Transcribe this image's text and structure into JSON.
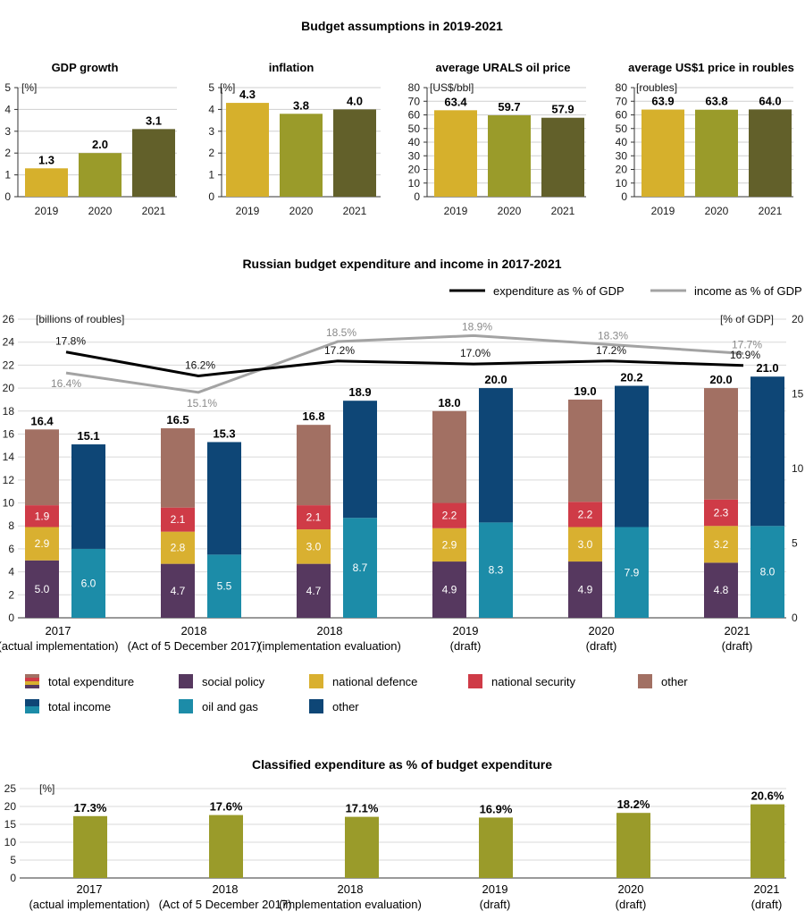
{
  "header": {
    "title": "Budget assumptions in 2019-2021"
  },
  "colors": {
    "c2019": "#d6b02c",
    "c2020": "#9a9b2a",
    "c2021": "#62602a",
    "social": "#56385f",
    "defence": "#d9b030",
    "security": "#cf3b47",
    "other_exp": "#a27063",
    "oilgas": "#1c8ca8",
    "other_inc": "#0e4676",
    "exp_line": "#000000",
    "inc_line": "#a3a3a3",
    "classified": "#9a9b2a"
  },
  "chart_data": [
    {
      "id": "gdp",
      "type": "bar",
      "title": "GDP growth",
      "unit": "[%]",
      "categories": [
        "2019",
        "2020",
        "2021"
      ],
      "values": [
        1.3,
        2.0,
        3.1
      ],
      "labels": [
        "1.3",
        "2.0",
        "3.1"
      ],
      "ylim": [
        0,
        5
      ],
      "ticks": [
        "0",
        "1",
        "2",
        "3",
        "4",
        "5"
      ]
    },
    {
      "id": "inflation",
      "type": "bar",
      "title": "inflation",
      "unit": "[%]",
      "categories": [
        "2019",
        "2020",
        "2021"
      ],
      "values": [
        4.3,
        3.8,
        4.0
      ],
      "labels": [
        "4.3",
        "3.8",
        "4.0"
      ],
      "ylim": [
        0,
        5
      ],
      "ticks": [
        "0",
        "1",
        "2",
        "3",
        "4",
        "5"
      ]
    },
    {
      "id": "urals",
      "type": "bar",
      "title": "average URALS oil price",
      "unit": "[US$/bbl]",
      "categories": [
        "2019",
        "2020",
        "2021"
      ],
      "values": [
        63.4,
        59.7,
        57.9
      ],
      "labels": [
        "63.4",
        "59.7",
        "57.9"
      ],
      "ylim": [
        0,
        80
      ],
      "ticks": [
        "0",
        "10",
        "20",
        "30",
        "40",
        "50",
        "60",
        "70",
        "80"
      ]
    },
    {
      "id": "usd",
      "type": "bar",
      "title": "average US$1 price in roubles",
      "unit": "[roubles]",
      "categories": [
        "2019",
        "2020",
        "2021"
      ],
      "values": [
        63.9,
        63.8,
        64.0
      ],
      "labels": [
        "63.9",
        "63.8",
        "64.0"
      ],
      "ylim": [
        0,
        80
      ],
      "ticks": [
        "0",
        "10",
        "20",
        "30",
        "40",
        "50",
        "60",
        "70",
        "80"
      ]
    },
    {
      "id": "budget",
      "type": "bar",
      "title": "Russian budget expenditure and income in 2017-2021",
      "unit_left": "[billions of roubles]",
      "unit_right": "[% of GDP]",
      "ylim": [
        0,
        26
      ],
      "ylim_right": [
        0,
        20
      ],
      "ticks_left": [
        "0",
        "2",
        "4",
        "6",
        "8",
        "10",
        "12",
        "14",
        "16",
        "18",
        "20",
        "22",
        "24",
        "26"
      ],
      "ticks_right": [
        "0",
        "5",
        "10",
        "15",
        "20"
      ],
      "categories": [
        {
          "year": "2017",
          "note": "(actual implementation)"
        },
        {
          "year": "2018",
          "note": "(Act of 5 December 2017)"
        },
        {
          "year": "2018",
          "note": "(implementation evaluation)"
        },
        {
          "year": "2019",
          "note": "(draft)"
        },
        {
          "year": "2020",
          "note": "(draft)"
        },
        {
          "year": "2021",
          "note": "(draft)"
        }
      ],
      "expenditure": {
        "totals": [
          16.4,
          16.5,
          16.8,
          18.0,
          19.0,
          20.0
        ],
        "total_labels": [
          "16.4",
          "16.5",
          "16.8",
          "18.0",
          "19.0",
          "20.0"
        ],
        "series": [
          {
            "name": "social policy",
            "values": [
              5.0,
              4.7,
              4.7,
              4.9,
              4.9,
              4.8
            ],
            "labels": [
              "5.0",
              "4.7",
              "4.7",
              "4.9",
              "4.9",
              "4.8"
            ]
          },
          {
            "name": "national defence",
            "values": [
              2.9,
              2.8,
              3.0,
              2.9,
              3.0,
              3.2
            ],
            "labels": [
              "2.9",
              "2.8",
              "3.0",
              "2.9",
              "3.0",
              "3.2"
            ]
          },
          {
            "name": "national security",
            "values": [
              1.9,
              2.1,
              2.1,
              2.2,
              2.2,
              2.3
            ],
            "labels": [
              "1.9",
              "2.1",
              "2.1",
              "2.2",
              "2.2",
              "2.3"
            ]
          }
        ]
      },
      "income": {
        "totals": [
          15.1,
          15.3,
          18.9,
          20.0,
          20.2,
          21.0
        ],
        "total_labels": [
          "15.1",
          "15.3",
          "18.9",
          "20.0",
          "20.2",
          "21.0"
        ],
        "series": [
          {
            "name": "oil and gas",
            "values": [
              6.0,
              5.5,
              8.7,
              8.3,
              7.9,
              8.0
            ],
            "labels": [
              "6.0",
              "5.5",
              "8.7",
              "8.3",
              "7.9",
              "8.0"
            ]
          }
        ]
      },
      "lines": [
        {
          "name": "expenditure as % of GDP",
          "values": [
            17.8,
            16.2,
            17.2,
            17.0,
            17.2,
            16.9
          ],
          "labels": [
            "17.8%",
            "16.2%",
            "17.2%",
            "17.0%",
            "17.2%",
            "16.9%"
          ]
        },
        {
          "name": "income as % of GDP",
          "values": [
            16.4,
            15.1,
            18.5,
            18.9,
            18.3,
            17.7
          ],
          "labels": [
            "16.4%",
            "15.1%",
            "18.5%",
            "18.9%",
            "18.3%",
            "17.7%"
          ]
        }
      ],
      "legend": [
        {
          "key": "total-expenditure",
          "label": "total expenditure"
        },
        {
          "key": "social-policy",
          "label": "social policy"
        },
        {
          "key": "national-defence",
          "label": "national defence"
        },
        {
          "key": "national-security",
          "label": "national security"
        },
        {
          "key": "other-expenditure",
          "label": "other"
        },
        {
          "key": "total-income",
          "label": "total income"
        },
        {
          "key": "oil-and-gas",
          "label": "oil and gas"
        },
        {
          "key": "other-income",
          "label": "other"
        }
      ]
    },
    {
      "id": "classified",
      "type": "bar",
      "title": "Classified expenditure as % of budget expenditure",
      "unit": "[%]",
      "ylim": [
        0,
        25
      ],
      "ticks": [
        "0",
        "5",
        "10",
        "15",
        "20",
        "25"
      ],
      "values": [
        17.3,
        17.6,
        17.1,
        16.9,
        18.2,
        20.6
      ],
      "labels": [
        "17.3%",
        "17.6%",
        "17.1%",
        "16.9%",
        "18.2%",
        "20.6%"
      ]
    }
  ]
}
